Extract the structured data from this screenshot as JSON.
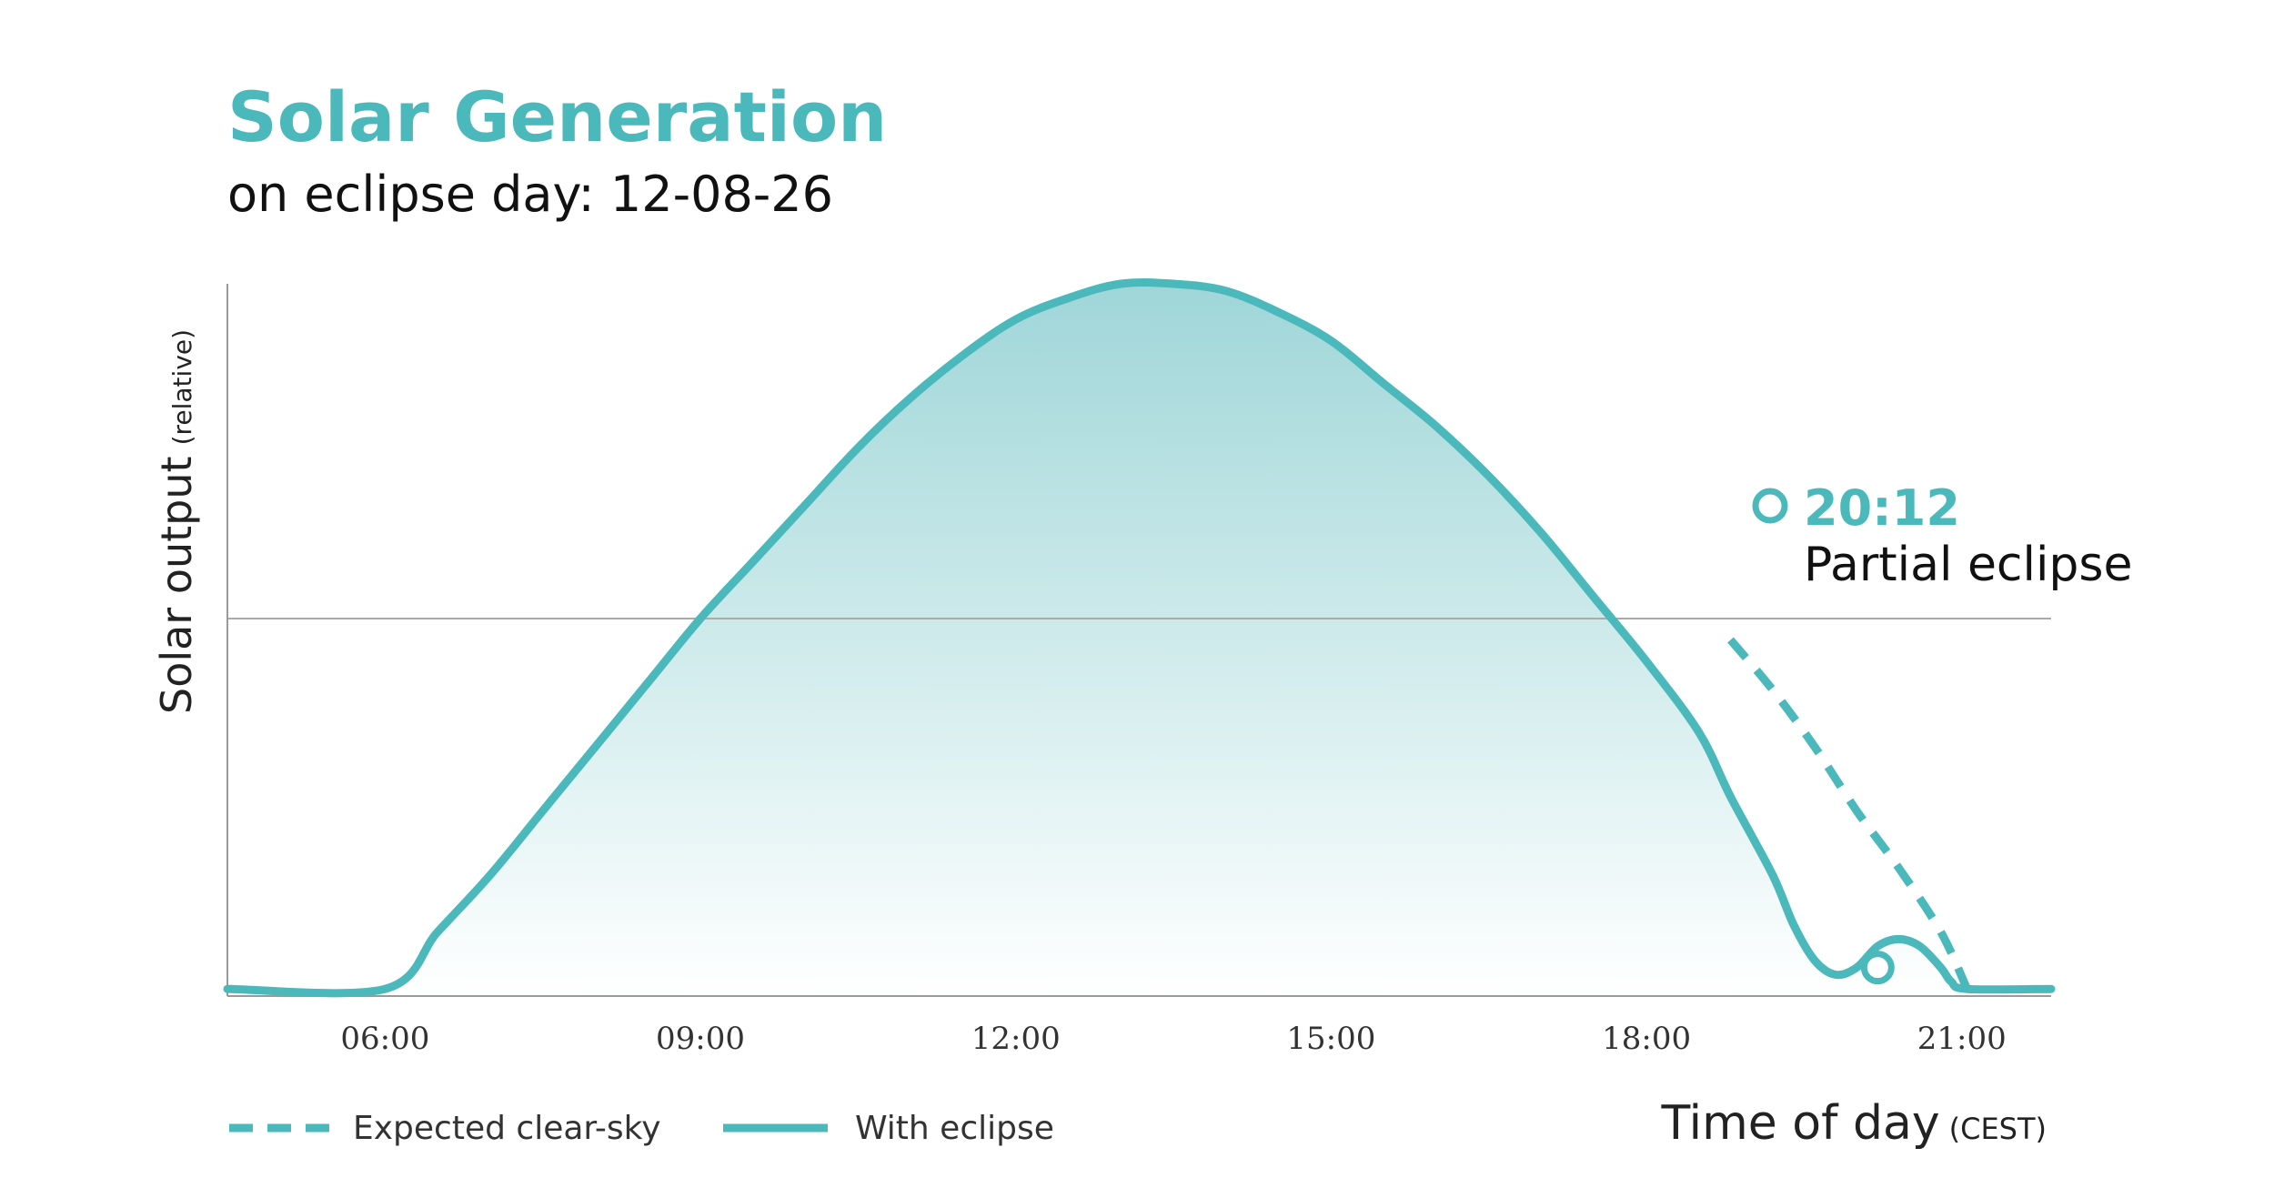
{
  "chart_data": {
    "type": "area",
    "title": "Solar Generation",
    "subtitle": "on eclipse day: 12-08-26",
    "ylabel": "Solar output",
    "ylabel_unit": "(relative)",
    "xlabel": "Time of day",
    "xlabel_unit": "(CEST)",
    "xlim": [
      4.5,
      21.85
    ],
    "ylim": [
      0,
      1
    ],
    "xticks": [
      {
        "value": 6,
        "label": "06:00"
      },
      {
        "value": 9,
        "label": "09:00"
      },
      {
        "value": 12,
        "label": "12:00"
      },
      {
        "value": 15,
        "label": "15:00"
      },
      {
        "value": 18,
        "label": "18:00"
      },
      {
        "value": 21,
        "label": "21:00"
      }
    ],
    "reference_line_y": 0.53,
    "series": [
      {
        "name": "Expected clear-sky",
        "style": "dashed",
        "x": [
          18.8,
          19.2,
          19.6,
          20.0,
          20.4,
          20.8,
          21.05
        ],
        "y": [
          0.5,
          0.43,
          0.35,
          0.26,
          0.18,
          0.09,
          0.01
        ]
      },
      {
        "name": "With eclipse",
        "style": "solid",
        "x": [
          4.5,
          6.0,
          6.5,
          7.0,
          7.5,
          8.0,
          8.5,
          9.0,
          9.5,
          10.0,
          10.5,
          11.0,
          11.5,
          12.0,
          12.5,
          13.0,
          13.5,
          14.0,
          14.5,
          15.0,
          15.5,
          16.0,
          16.5,
          17.0,
          17.5,
          18.0,
          18.5,
          18.8,
          19.2,
          19.4,
          19.6,
          19.8,
          20.0,
          20.2,
          20.4,
          20.6,
          20.8,
          20.9,
          21.05,
          21.85
        ],
        "y": [
          0.01,
          0.01,
          0.09,
          0.17,
          0.26,
          0.35,
          0.44,
          0.53,
          0.61,
          0.69,
          0.77,
          0.84,
          0.9,
          0.95,
          0.98,
          1.0,
          1.0,
          0.99,
          0.96,
          0.92,
          0.86,
          0.8,
          0.73,
          0.65,
          0.56,
          0.47,
          0.37,
          0.28,
          0.17,
          0.1,
          0.05,
          0.03,
          0.04,
          0.07,
          0.08,
          0.07,
          0.04,
          0.02,
          0.01,
          0.01
        ]
      }
    ],
    "annotation": {
      "time": "20:12",
      "label": "Partial eclipse",
      "x": 20.2,
      "y": 0.04
    },
    "colors": {
      "line": "#4bb9bb",
      "fill_top": "#9fd6d8",
      "axis": "#9a9a9a",
      "reference": "#aaaaaa"
    },
    "legend_position": "bottom-left"
  }
}
